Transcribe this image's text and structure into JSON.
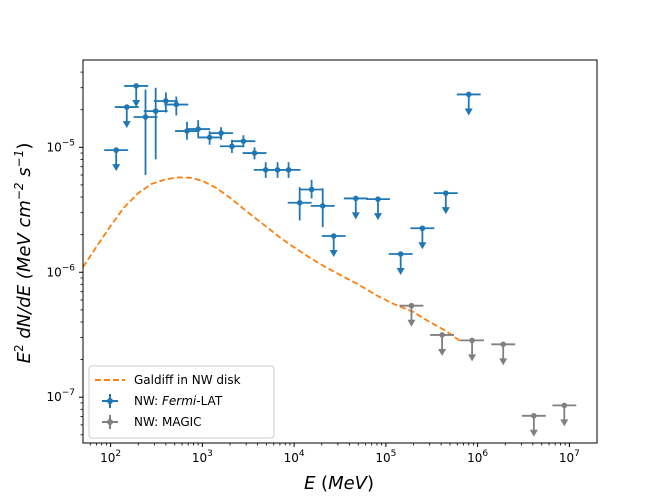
{
  "chart_data": {
    "type": "scatter",
    "xscale": "log",
    "yscale": "log",
    "xlim": [
      50,
      20000000
    ],
    "ylim": [
      4.3e-08,
      5e-05
    ],
    "xlabel": "E (MeV)",
    "ylabel": "E2 dN/dE (MeV cm−2 s−1)",
    "x_ticks": [
      {
        "value": 100,
        "mant": "10",
        "exp": "2"
      },
      {
        "value": 1000,
        "mant": "10",
        "exp": "3"
      },
      {
        "value": 10000,
        "mant": "10",
        "exp": "4"
      },
      {
        "value": 100000,
        "mant": "10",
        "exp": "5"
      },
      {
        "value": 1000000,
        "mant": "10",
        "exp": "6"
      },
      {
        "value": 10000000,
        "mant": "10",
        "exp": "7"
      }
    ],
    "y_ticks": [
      {
        "value": 1e-07,
        "mant": "10",
        "exp": "−7"
      },
      {
        "value": 1e-06,
        "mant": "10",
        "exp": "−6"
      },
      {
        "value": 1e-05,
        "mant": "10",
        "exp": "−5"
      }
    ],
    "legend": {
      "position": "lower-left",
      "items": [
        {
          "label": "Galdiff in NW disk",
          "style": "dashed-line",
          "color": "#ff7f0e"
        },
        {
          "label_pre": "NW: ",
          "label_italic": "Fermi",
          "label_post": "-LAT",
          "style": "errorbar",
          "color": "#1f77b4"
        },
        {
          "label": "NW: MAGIC",
          "style": "errorbar",
          "color": "#808080"
        }
      ]
    },
    "series": [
      {
        "name": "Galdiff in NW disk",
        "kind": "line",
        "color": "#ff7f0e",
        "x": [
          50,
          70,
          100,
          140,
          200,
          280,
          400,
          550,
          750,
          1000,
          1400,
          2000,
          3000,
          4500,
          7000,
          10000,
          15000,
          22000,
          32000,
          50000,
          80000,
          120000,
          200000,
          300000,
          450000,
          650000
        ],
        "y": [
          1.1e-06,
          1.6e-06,
          2.35e-06,
          3.3e-06,
          4.3e-06,
          5.1e-06,
          5.55e-06,
          5.75e-06,
          5.7e-06,
          5.4e-06,
          4.75e-06,
          3.95e-06,
          3.1e-06,
          2.45e-06,
          1.9e-06,
          1.58e-06,
          1.3e-06,
          1.1e-06,
          9.5e-07,
          8e-07,
          6.5e-07,
          5.6e-07,
          4.8e-07,
          4e-07,
          3.4e-07,
          2.8e-07
        ]
      },
      {
        "name": "NW: Fermi-LAT",
        "kind": "points",
        "color": "#1f77b4",
        "points": [
          {
            "x": 115,
            "y": 9.5e-06,
            "ul": true
          },
          {
            "x": 150,
            "y": 2.1e-05,
            "ul": true
          },
          {
            "x": 190,
            "y": 3.1e-05,
            "ul": true
          },
          {
            "x": 240,
            "y": 1.75e-05,
            "ylo": 6e-06,
            "yhi": 2.9e-05
          },
          {
            "x": 310,
            "y": 1.95e-05,
            "ylo": 8e-06,
            "yhi": 3e-05
          },
          {
            "x": 400,
            "y": 2.35e-05,
            "ylo": 1.9e-05,
            "yhi": 2.75e-05
          },
          {
            "x": 520,
            "y": 2.2e-05,
            "ylo": 1.8e-05,
            "yhi": 2.55e-05
          },
          {
            "x": 680,
            "y": 1.35e-05,
            "ylo": 1.15e-05,
            "yhi": 1.6e-05
          },
          {
            "x": 900,
            "y": 1.4e-05,
            "ylo": 1.2e-05,
            "yhi": 1.65e-05
          },
          {
            "x": 1200,
            "y": 1.2e-05,
            "ylo": 1.05e-05,
            "yhi": 1.35e-05
          },
          {
            "x": 1600,
            "y": 1.3e-05,
            "ylo": 1.15e-05,
            "yhi": 1.45e-05
          },
          {
            "x": 2100,
            "y": 1.02e-05,
            "ylo": 9e-06,
            "yhi": 1.15e-05
          },
          {
            "x": 2800,
            "y": 1.12e-05,
            "ylo": 1e-05,
            "yhi": 1.25e-05
          },
          {
            "x": 3700,
            "y": 9e-06,
            "ylo": 8e-06,
            "yhi": 1e-05
          },
          {
            "x": 4900,
            "y": 6.6e-06,
            "ylo": 5.7e-06,
            "yhi": 7.6e-06
          },
          {
            "x": 6600,
            "y": 6.6e-06,
            "ylo": 5.7e-06,
            "yhi": 7.6e-06
          },
          {
            "x": 8700,
            "y": 6.6e-06,
            "ylo": 5.7e-06,
            "yhi": 7.6e-06
          },
          {
            "x": 11500,
            "y": 3.6e-06,
            "ylo": 2.6e-06,
            "yhi": 4.8e-06
          },
          {
            "x": 15500,
            "y": 4.6e-06,
            "ylo": 3.9e-06,
            "yhi": 5.5e-06
          },
          {
            "x": 20500,
            "y": 3.4e-06,
            "ylo": 2.3e-06,
            "yhi": 4.7e-06
          },
          {
            "x": 27000,
            "y": 1.95e-06,
            "ul": true
          },
          {
            "x": 47000,
            "y": 3.9e-06,
            "ul": true
          },
          {
            "x": 82000,
            "y": 3.85e-06,
            "ul": true
          },
          {
            "x": 145000,
            "y": 1.4e-06,
            "ul": true
          },
          {
            "x": 250000,
            "y": 2.25e-06,
            "ul": true
          },
          {
            "x": 450000,
            "y": 4.3e-06,
            "ul": true
          },
          {
            "x": 800000,
            "y": 2.65e-05,
            "ul": true
          }
        ]
      },
      {
        "name": "NW: MAGIC",
        "kind": "points",
        "color": "#808080",
        "points": [
          {
            "x": 190000,
            "y": 5.4e-07,
            "ul": true
          },
          {
            "x": 410000,
            "y": 3.15e-07,
            "ul": true
          },
          {
            "x": 870000,
            "y": 2.85e-07,
            "ul": true
          },
          {
            "x": 1900000,
            "y": 2.65e-07,
            "ul": true
          },
          {
            "x": 4100000,
            "y": 7.1e-08,
            "ul": true
          },
          {
            "x": 8800000,
            "y": 8.6e-08,
            "ul": true
          }
        ]
      }
    ]
  }
}
